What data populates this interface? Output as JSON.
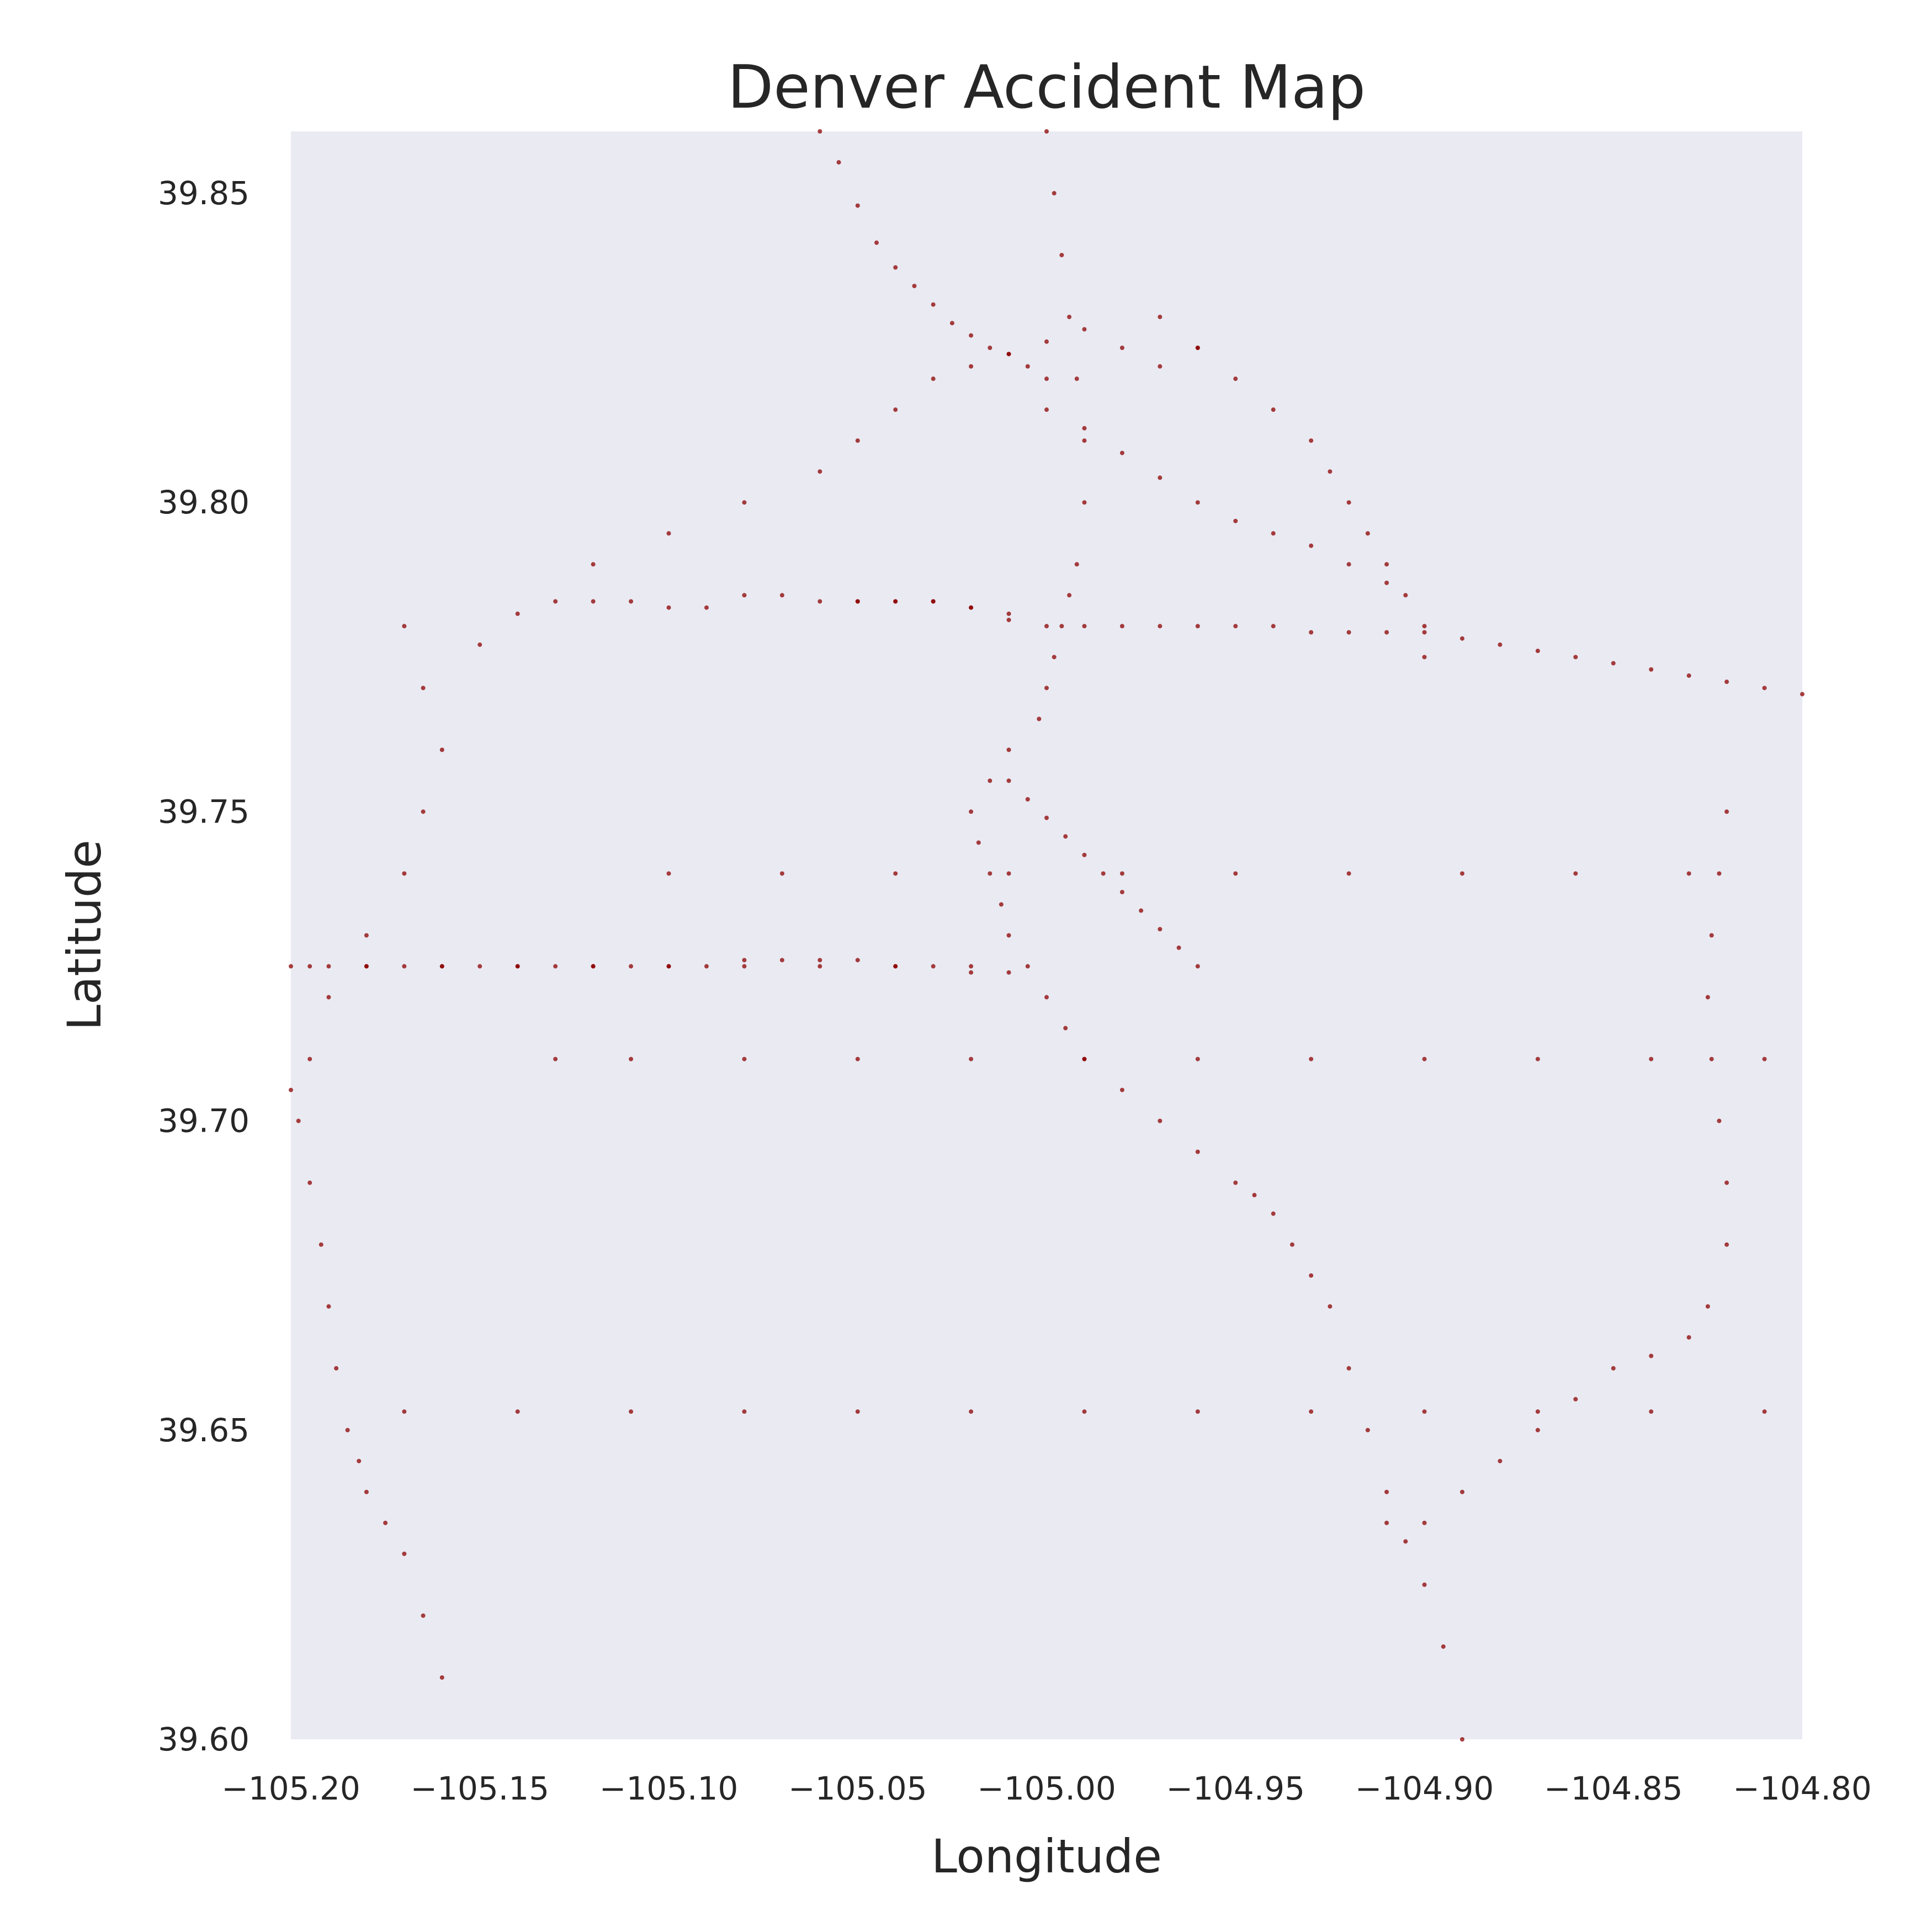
{
  "chart_data": {
    "type": "scatter",
    "title": "Denver Accident Map",
    "xlabel": "Longitude",
    "ylabel": "Latitude",
    "xlim": [
      -105.2,
      -104.8
    ],
    "ylim": [
      39.6,
      39.86
    ],
    "xticks": [
      -105.2,
      -105.15,
      -105.1,
      -105.05,
      -105.0,
      -104.95,
      -104.9,
      -104.85,
      -104.8
    ],
    "xtick_labels": [
      "−105.20",
      "−105.15",
      "−105.10",
      "−105.05",
      "−105.00",
      "−104.95",
      "−104.90",
      "−104.85",
      "−104.80"
    ],
    "yticks": [
      39.6,
      39.65,
      39.7,
      39.75,
      39.8,
      39.85
    ],
    "ytick_labels": [
      "39.60",
      "39.65",
      "39.70",
      "39.75",
      "39.80",
      "39.85"
    ],
    "grid": false,
    "legend": "none",
    "colors": {
      "points": "#8b0000",
      "background": "#eaeaf2",
      "text": "#262626"
    },
    "series": [
      {
        "values_note_free": true,
        "x": [
          -105.195,
          -105.19,
          -105.18,
          -105.17,
          -105.16,
          -105.15,
          -105.14,
          -105.13,
          -105.12,
          -105.11,
          -105.1,
          -105.09,
          -105.08,
          -105.07,
          -105.06,
          -105.05,
          -105.04,
          -105.03,
          -105.02,
          -105.01,
          -105.2,
          -105.18,
          -105.16,
          -105.14,
          -105.12,
          -105.1,
          -105.08,
          -105.06,
          -105.04,
          -105.02,
          -105.15,
          -105.14,
          -105.13,
          -105.12,
          -105.11,
          -105.1,
          -105.09,
          -105.08,
          -105.07,
          -105.06,
          -105.05,
          -105.04,
          -105.03,
          -105.02,
          -105.01,
          -105.05,
          -105.04,
          -105.03,
          -105.02,
          -105.01,
          -105.0,
          -104.99,
          -104.98,
          -104.97,
          -104.96,
          -104.95,
          -104.94,
          -104.93,
          -104.92,
          -104.91,
          -104.9,
          -104.89,
          -104.88,
          -104.87,
          -104.86,
          -104.85,
          -104.84,
          -104.83,
          -104.82,
          -104.81,
          -104.8,
          -105.0,
          -104.998,
          -104.996,
          -104.994,
          -104.992,
          -104.99,
          -104.99,
          -104.992,
          -104.994,
          -104.996,
          -104.998,
          -105.0,
          -105.002,
          -105.01,
          -105.015,
          -105.02,
          -105.018,
          -105.015,
          -105.012,
          -105.01,
          -105.005,
          -105.0,
          -104.995,
          -104.99,
          -104.98,
          -104.97,
          -104.96,
          -104.95,
          -104.945,
          -104.94,
          -104.935,
          -104.93,
          -104.925,
          -104.92,
          -104.915,
          -104.91,
          -104.905,
          -104.9,
          -104.895,
          -104.89,
          -104.91,
          -104.9,
          -104.89,
          -104.88,
          -104.87,
          -104.86,
          -104.85,
          -104.84,
          -104.83,
          -104.825,
          -104.82,
          -104.82,
          -104.822,
          -104.824,
          -104.825,
          -104.824,
          -104.822,
          -104.82,
          -105.17,
          -105.165,
          -105.16,
          -105.165,
          -105.17,
          -105.18,
          -105.19,
          -105.195,
          -105.2,
          -105.198,
          -105.195,
          -105.192,
          -105.19,
          -105.188,
          -105.185,
          -105.182,
          -105.18,
          -105.175,
          -105.17,
          -105.165,
          -105.16,
          -105.12,
          -105.1,
          -105.08,
          -105.06,
          -105.05,
          -105.04,
          -105.03,
          -105.02,
          -105.01,
          -105.0,
          -104.99,
          -104.98,
          -104.97,
          -104.96,
          -104.97,
          -104.96,
          -104.95,
          -104.94,
          -104.93,
          -104.925,
          -104.92,
          -104.915,
          -104.91,
          -104.905,
          -104.9,
          -104.9,
          -105.06,
          -105.055,
          -105.05,
          -105.045,
          -105.04,
          -105.035,
          -105.03,
          -105.025,
          -105.02,
          -105.015,
          -105.01,
          -105.005,
          -105.0,
          -105.0,
          -104.99,
          -104.98,
          -104.97,
          -104.96,
          -104.95,
          -104.94,
          -104.93,
          -104.92,
          -104.91,
          -105.01,
          -105.005,
          -105.0,
          -104.995,
          -104.99,
          -104.985,
          -104.98,
          -104.975,
          -104.97,
          -104.965,
          -104.96,
          -105.1,
          -105.07,
          -105.04,
          -105.01,
          -104.98,
          -104.95,
          -104.92,
          -104.89,
          -104.86,
          -104.83,
          -105.13,
          -105.11,
          -105.08,
          -105.05,
          -105.02,
          -104.99,
          -104.96,
          -104.93,
          -104.9,
          -104.87,
          -104.84,
          -104.81,
          -105.17,
          -105.14,
          -105.11,
          -105.08,
          -105.05,
          -105.02,
          -104.99,
          -104.96,
          -104.93,
          -104.9,
          -104.87,
          -104.84,
          -104.81
        ],
        "y": [
          39.725,
          39.725,
          39.725,
          39.725,
          39.725,
          39.725,
          39.725,
          39.725,
          39.725,
          39.725,
          39.725,
          39.725,
          39.726,
          39.726,
          39.726,
          39.726,
          39.725,
          39.725,
          39.724,
          39.724,
          39.725,
          39.725,
          39.725,
          39.725,
          39.725,
          39.725,
          39.725,
          39.725,
          39.725,
          39.725,
          39.777,
          39.782,
          39.784,
          39.784,
          39.784,
          39.783,
          39.783,
          39.785,
          39.785,
          39.784,
          39.784,
          39.784,
          39.784,
          39.783,
          39.781,
          39.784,
          39.784,
          39.784,
          39.783,
          39.782,
          39.78,
          39.78,
          39.78,
          39.78,
          39.78,
          39.78,
          39.78,
          39.779,
          39.779,
          39.779,
          39.779,
          39.778,
          39.777,
          39.776,
          39.775,
          39.774,
          39.773,
          39.772,
          39.771,
          39.77,
          39.769,
          39.86,
          39.85,
          39.84,
          39.83,
          39.82,
          39.81,
          39.8,
          39.79,
          39.785,
          39.78,
          39.775,
          39.77,
          39.765,
          39.76,
          39.755,
          39.75,
          39.745,
          39.74,
          39.735,
          39.73,
          39.725,
          39.72,
          39.715,
          39.71,
          39.705,
          39.7,
          39.695,
          39.69,
          39.688,
          39.685,
          39.68,
          39.675,
          39.67,
          39.66,
          39.65,
          39.64,
          39.632,
          39.625,
          39.615,
          39.6,
          39.635,
          39.635,
          39.64,
          39.645,
          39.65,
          39.655,
          39.66,
          39.662,
          39.665,
          39.67,
          39.68,
          39.69,
          39.7,
          39.71,
          39.72,
          39.73,
          39.74,
          39.75,
          39.78,
          39.77,
          39.76,
          39.75,
          39.74,
          39.73,
          39.72,
          39.71,
          39.705,
          39.7,
          39.69,
          39.68,
          39.67,
          39.66,
          39.65,
          39.645,
          39.64,
          39.635,
          39.63,
          39.62,
          39.61,
          39.79,
          39.795,
          39.8,
          39.805,
          39.81,
          39.815,
          39.82,
          39.822,
          39.824,
          39.826,
          39.828,
          39.825,
          39.822,
          39.825,
          39.83,
          39.825,
          39.82,
          39.815,
          39.81,
          39.805,
          39.8,
          39.795,
          39.79,
          39.785,
          39.78,
          39.775,
          39.86,
          39.855,
          39.848,
          39.842,
          39.838,
          39.835,
          39.832,
          39.829,
          39.827,
          39.825,
          39.824,
          39.822,
          39.82,
          39.815,
          39.812,
          39.808,
          39.804,
          39.8,
          39.797,
          39.795,
          39.793,
          39.79,
          39.787,
          39.755,
          39.752,
          39.749,
          39.746,
          39.743,
          39.74,
          39.737,
          39.734,
          39.731,
          39.728,
          39.725,
          39.74,
          39.74,
          39.74,
          39.74,
          39.74,
          39.74,
          39.74,
          39.74,
          39.74,
          39.74,
          39.71,
          39.71,
          39.71,
          39.71,
          39.71,
          39.71,
          39.71,
          39.71,
          39.71,
          39.71,
          39.71,
          39.71,
          39.653,
          39.653,
          39.653,
          39.653,
          39.653,
          39.653,
          39.653,
          39.653,
          39.653,
          39.653,
          39.653,
          39.653,
          39.653
        ]
      }
    ]
  }
}
